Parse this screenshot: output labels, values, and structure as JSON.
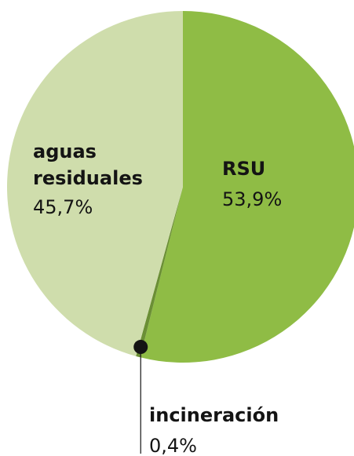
{
  "chart_data": {
    "type": "pie",
    "categories": [
      "RSU",
      "incineración",
      "aguas residuales"
    ],
    "values": [
      53.9,
      0.4,
      45.7
    ],
    "value_labels": [
      "53,9%",
      "0,4%",
      "45,7%"
    ],
    "colors": [
      "#8fbc45",
      "#6b8f35",
      "#cfddac"
    ]
  }
}
